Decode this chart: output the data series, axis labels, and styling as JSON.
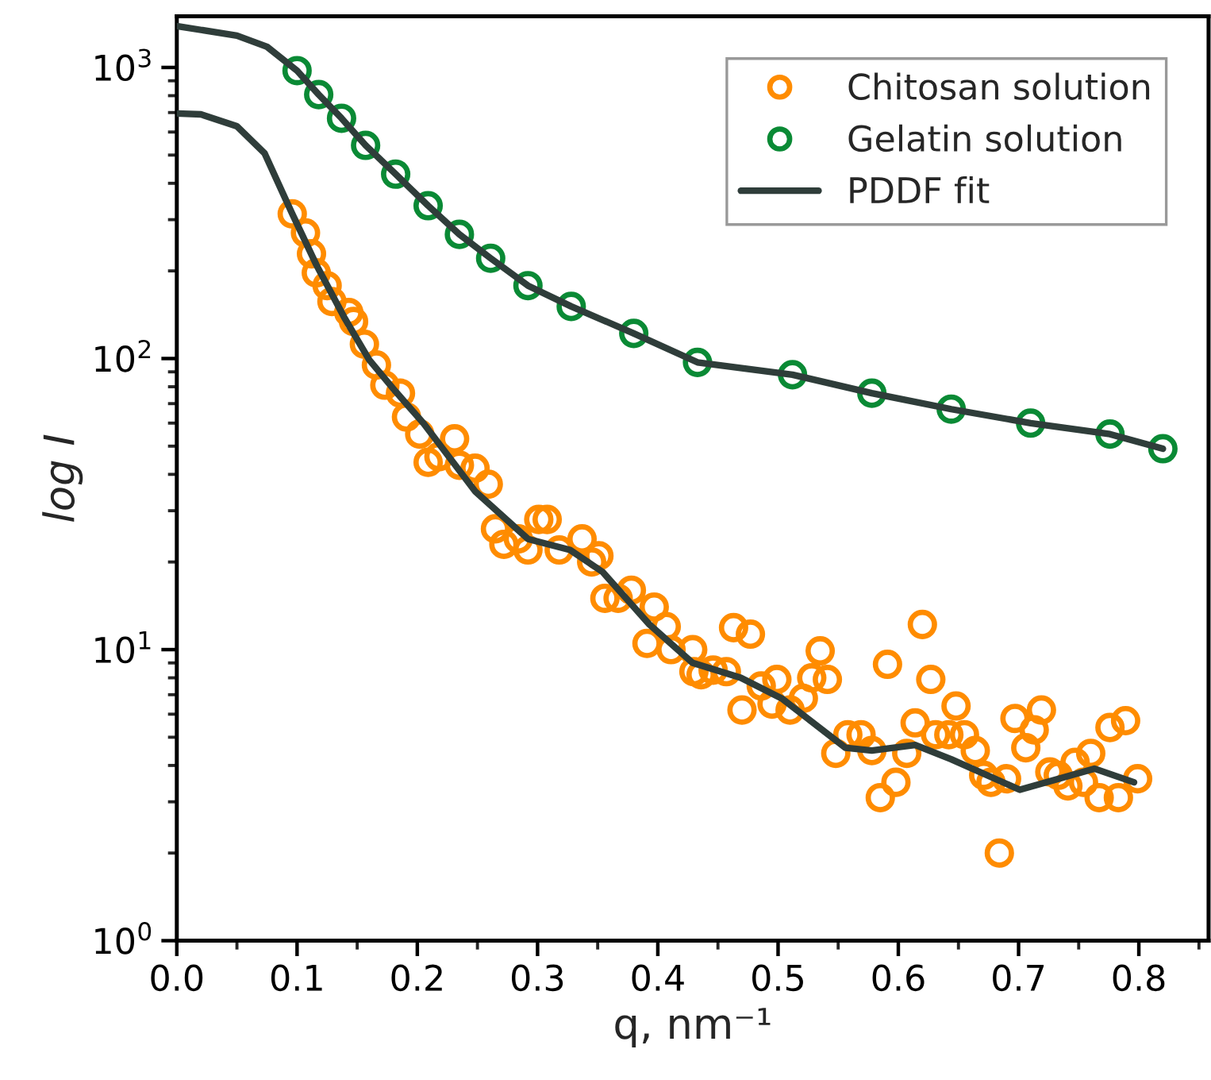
{
  "chart_data": {
    "type": "scatter",
    "xlabel": "q, nm⁻¹",
    "ylabel": "log I",
    "log": "y",
    "xlim": [
      0,
      0.858
    ],
    "ylim": [
      1,
      1500
    ],
    "xticks": [
      {
        "value": 0,
        "label": "0.0"
      },
      0.1,
      0.2,
      0.3,
      0.4,
      0.5,
      0.6,
      0.7,
      0.8
    ],
    "yticks": [
      {
        "value": 1,
        "label": "10$^{0}$"
      },
      {
        "value": 10,
        "label": "10$^{1}$"
      },
      {
        "value": 100,
        "label": "10$^{2}$"
      },
      {
        "value": 1000,
        "label": "10$^{3}$"
      }
    ],
    "grid": false,
    "legend": "top right",
    "marker": "circle",
    "series": [
      {
        "name": "Chitosan solution",
        "color": "#ff8c00",
        "x": [
          0.096,
          0.107,
          0.112,
          0.116,
          0.125,
          0.129,
          0.143,
          0.147,
          0.156,
          0.166,
          0.173,
          0.186,
          0.191,
          0.202,
          0.209,
          0.218,
          0.231,
          0.235,
          0.248,
          0.259,
          0.265,
          0.272,
          0.284,
          0.292,
          0.301,
          0.308,
          0.318,
          0.337,
          0.345,
          0.351,
          0.356,
          0.367,
          0.378,
          0.391,
          0.397,
          0.407,
          0.411,
          0.429,
          0.43,
          0.436,
          0.446,
          0.457,
          0.463,
          0.47,
          0.477,
          0.486,
          0.495,
          0.499,
          0.51,
          0.521,
          0.528,
          0.535,
          0.541,
          0.548,
          0.558,
          0.569,
          0.578,
          0.585,
          0.591,
          0.598,
          0.607,
          0.614,
          0.62,
          0.627,
          0.631,
          0.642,
          0.648,
          0.655,
          0.664,
          0.671,
          0.677,
          0.684,
          0.69,
          0.697,
          0.706,
          0.713,
          0.719,
          0.726,
          0.733,
          0.741,
          0.747,
          0.754,
          0.76,
          0.767,
          0.776,
          0.783,
          0.789,
          0.799
        ],
        "values": [
          314,
          270,
          229,
          197,
          178,
          157,
          144,
          134,
          112,
          95,
          81,
          76,
          63,
          55,
          44,
          46,
          53,
          43,
          42,
          37,
          26,
          23,
          24,
          22,
          28,
          28,
          22,
          24,
          20,
          21,
          15,
          15,
          16,
          10.5,
          14,
          12,
          10,
          10,
          8.4,
          8.2,
          8.5,
          8.4,
          11.9,
          6.2,
          11.3,
          7.5,
          6.5,
          7.9,
          6.2,
          6.8,
          8.0,
          9.9,
          7.9,
          4.4,
          5.1,
          5.1,
          4.5,
          3.1,
          8.9,
          3.5,
          4.4,
          5.6,
          12.2,
          7.9,
          5.1,
          5.1,
          6.4,
          5.1,
          4.5,
          3.7,
          3.5,
          2.0,
          3.6,
          5.8,
          4.6,
          5.3,
          6.2,
          3.8,
          3.7,
          3.4,
          4.1,
          3.5,
          4.4,
          3.1,
          5.4,
          3.1,
          5.7,
          3.6
        ]
      },
      {
        "name": "Gelatin solution",
        "color": "#0a8a35",
        "x": [
          0.1,
          0.118,
          0.137,
          0.157,
          0.182,
          0.209,
          0.235,
          0.261,
          0.292,
          0.328,
          0.38,
          0.433,
          0.512,
          0.578,
          0.644,
          0.71,
          0.776,
          0.82
        ],
        "values": [
          975,
          807,
          669,
          540,
          430,
          335,
          267,
          221,
          178,
          151,
          122,
          97,
          88,
          76,
          67,
          60,
          55,
          49
        ]
      },
      {
        "name": "PDDF fit",
        "type": "line",
        "color": "#2f3d3a",
        "marker": "none",
        "line_style": "solid",
        "x": [
          0,
          0.05,
          0.075,
          0.1,
          0.118,
          0.137,
          0.157,
          0.182,
          0.209,
          0.235,
          0.261,
          0.292,
          0.328,
          0.38,
          0.433,
          0.512,
          0.578,
          0.644,
          0.71,
          0.776,
          0.82
        ],
        "values": [
          1387,
          1286,
          1178,
          975,
          807,
          669,
          540,
          430,
          335,
          267,
          221,
          178,
          151,
          122,
          97,
          88,
          76,
          67,
          60,
          55,
          49
        ]
      },
      {
        "type": "line",
        "color": "#2f3d3a",
        "marker": "none",
        "line_style": "solid",
        "x": [
          0,
          0.02,
          0.05,
          0.073,
          0.096,
          0.116,
          0.139,
          0.16,
          0.182,
          0.205,
          0.248,
          0.292,
          0.327,
          0.354,
          0.393,
          0.429,
          0.469,
          0.503,
          0.556,
          0.578,
          0.614,
          0.644,
          0.701,
          0.763,
          0.796
        ],
        "values": [
          695,
          690,
          628,
          507,
          314,
          210,
          139,
          99,
          77,
          60,
          35,
          24,
          22,
          18.5,
          12.2,
          9.0,
          8.0,
          6.8,
          4.6,
          4.5,
          4.7,
          4.2,
          3.3,
          3.9,
          3.5
        ]
      }
    ]
  }
}
